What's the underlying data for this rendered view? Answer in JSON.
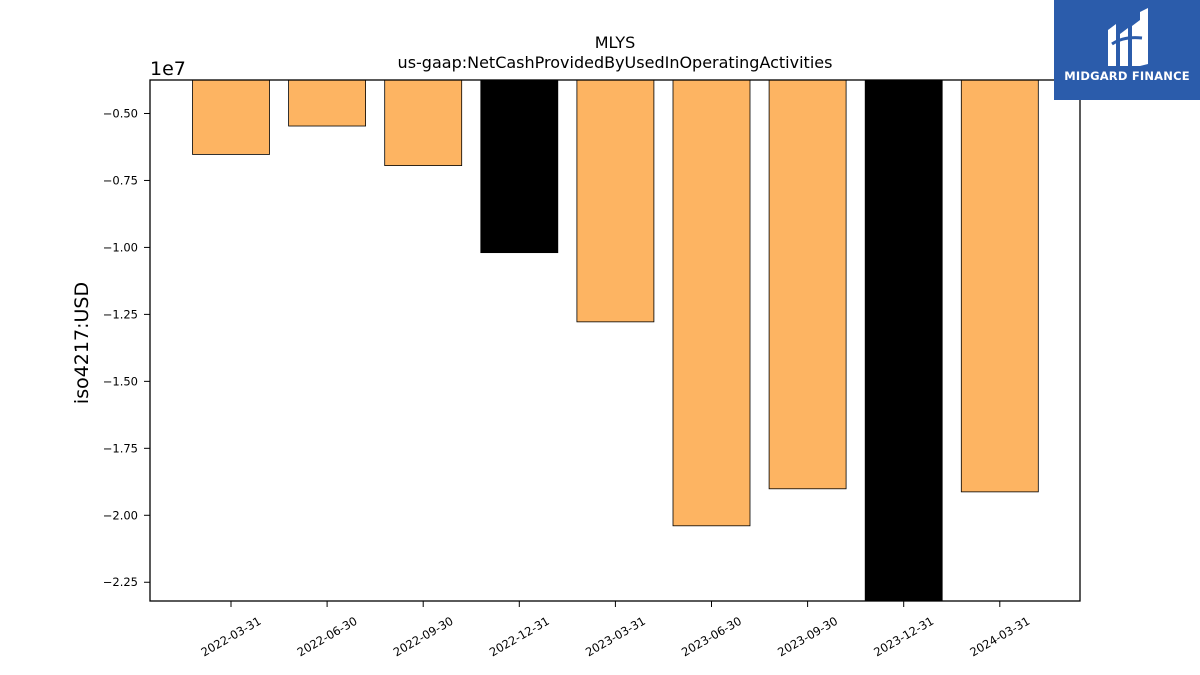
{
  "logo": {
    "text": "MIDGARD FINANCE",
    "color": "#2b5cab"
  },
  "chart_data": {
    "type": "bar",
    "title": "MLYS",
    "subtitle": "us-gaap:NetCashProvidedByUsedInOperatingActivities",
    "ylabel": "iso4217:USD",
    "xlabel": "",
    "offset_text": "1e7",
    "categories": [
      "2022-03-31",
      "2022-06-30",
      "2022-09-30",
      "2022-12-31",
      "2023-03-31",
      "2023-06-30",
      "2023-09-30",
      "2023-12-31",
      "2024-03-31"
    ],
    "values": [
      -6528000,
      -5468000,
      -6945000,
      -10195000,
      -12779000,
      -20393000,
      -19011000,
      -23500000,
      -19126000
    ],
    "highlight": [
      false,
      false,
      false,
      true,
      false,
      false,
      false,
      true,
      false
    ],
    "ylim": [
      -23200000.0,
      -3750000.0
    ],
    "yticks": [
      -5000000,
      -7500000,
      -10000000,
      -12500000,
      -15000000,
      -17500000,
      -20000000,
      -22500000
    ],
    "ytick_labels": [
      "−0.50",
      "−0.75",
      "−1.00",
      "−1.25",
      "−1.50",
      "−1.75",
      "−2.00",
      "−2.25"
    ],
    "bar_color": "#fdb462",
    "highlight_color": "#000000",
    "grid": false,
    "legend": "none"
  }
}
